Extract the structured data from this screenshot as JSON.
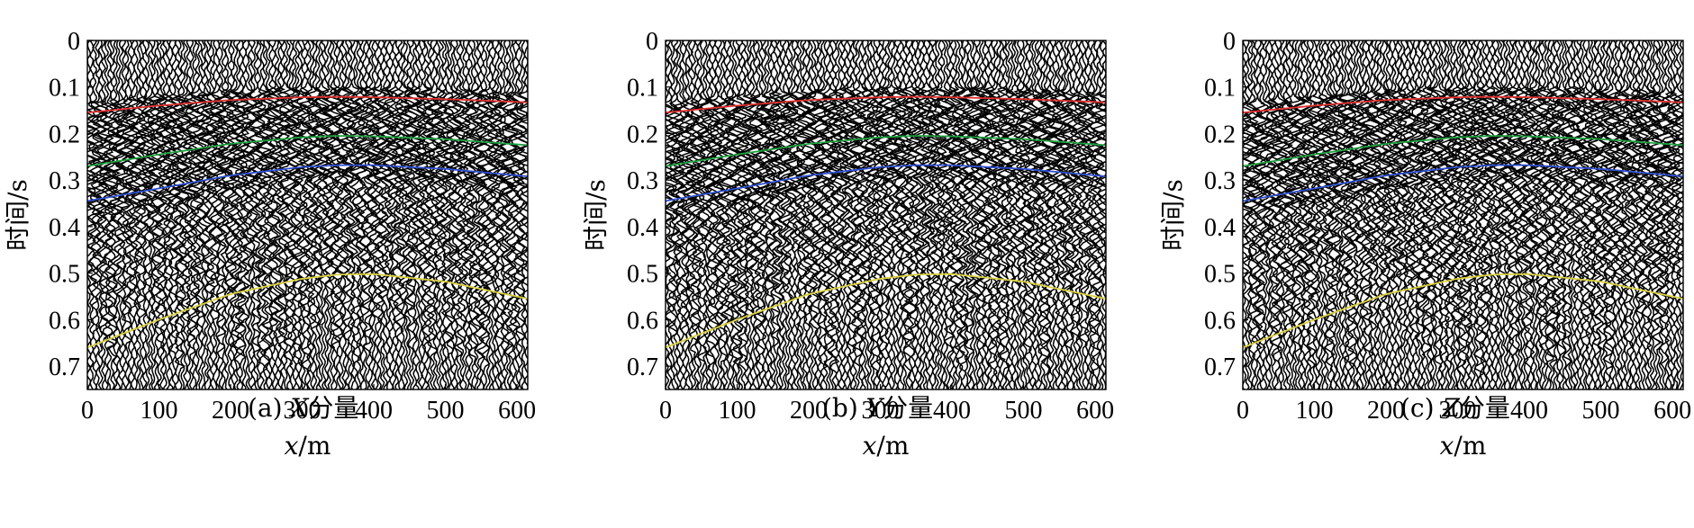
{
  "chart_data": [
    {
      "type": "seismic-wiggle",
      "panel": "a",
      "caption_prefix": "(a) ",
      "caption_component": "X",
      "caption_suffix": "分量",
      "ylabel": "时间/s",
      "xlabel_var": "x",
      "xlabel_unit": "/m",
      "x_ticks": [
        0,
        100,
        200,
        300,
        400,
        500,
        600
      ],
      "y_ticks": [
        "0",
        "0.1",
        "0.2",
        "0.3",
        "0.4",
        "0.5",
        "0.6",
        "0.7"
      ],
      "xlim": [
        0,
        615
      ],
      "ylim": [
        0,
        0.75
      ],
      "y_inverted": true,
      "seed": 11,
      "series": [
        {
          "color": "#e03030",
          "x": [
            0,
            100,
            200,
            300,
            350,
            400,
            500,
            615
          ],
          "t": [
            0.155,
            0.14,
            0.128,
            0.122,
            0.121,
            0.122,
            0.126,
            0.133
          ]
        },
        {
          "color": "#20a040",
          "x": [
            0,
            100,
            200,
            300,
            350,
            400,
            500,
            615
          ],
          "t": [
            0.27,
            0.245,
            0.222,
            0.208,
            0.205,
            0.206,
            0.212,
            0.225
          ]
        },
        {
          "color": "#3050d0",
          "x": [
            0,
            100,
            200,
            300,
            350,
            400,
            500,
            615
          ],
          "t": [
            0.345,
            0.318,
            0.29,
            0.272,
            0.268,
            0.268,
            0.276,
            0.292
          ]
        },
        {
          "color": "#d8d040",
          "x": [
            0,
            100,
            200,
            300,
            350,
            400,
            500,
            615
          ],
          "t": [
            0.66,
            0.6,
            0.545,
            0.512,
            0.503,
            0.502,
            0.518,
            0.555
          ]
        }
      ]
    },
    {
      "type": "seismic-wiggle",
      "panel": "b",
      "caption_prefix": "(b) ",
      "caption_component": "Y",
      "caption_suffix": "分量",
      "ylabel": "时间/s",
      "xlabel_var": "x",
      "xlabel_unit": "/m",
      "x_ticks": [
        0,
        100,
        200,
        300,
        400,
        500,
        600
      ],
      "y_ticks": [
        "0",
        "0.1",
        "0.2",
        "0.3",
        "0.4",
        "0.5",
        "0.6",
        "0.7"
      ],
      "xlim": [
        0,
        615
      ],
      "ylim": [
        0,
        0.75
      ],
      "y_inverted": true,
      "seed": 23,
      "series": [
        {
          "color": "#e03030",
          "x": [
            0,
            100,
            200,
            300,
            350,
            400,
            500,
            615
          ],
          "t": [
            0.155,
            0.14,
            0.128,
            0.122,
            0.121,
            0.122,
            0.126,
            0.133
          ]
        },
        {
          "color": "#20a040",
          "x": [
            0,
            100,
            200,
            300,
            350,
            400,
            500,
            615
          ],
          "t": [
            0.27,
            0.245,
            0.222,
            0.208,
            0.205,
            0.206,
            0.212,
            0.225
          ]
        },
        {
          "color": "#3050d0",
          "x": [
            0,
            100,
            200,
            300,
            350,
            400,
            500,
            615
          ],
          "t": [
            0.345,
            0.318,
            0.29,
            0.272,
            0.268,
            0.268,
            0.276,
            0.292
          ]
        },
        {
          "color": "#d8d040",
          "x": [
            0,
            100,
            200,
            300,
            350,
            400,
            500,
            615
          ],
          "t": [
            0.66,
            0.6,
            0.545,
            0.512,
            0.503,
            0.502,
            0.518,
            0.555
          ]
        }
      ]
    },
    {
      "type": "seismic-wiggle",
      "panel": "c",
      "caption_prefix": "(c) ",
      "caption_component": "Z",
      "caption_suffix": "分量",
      "ylabel": "时间/s",
      "xlabel_var": "x",
      "xlabel_unit": "/m",
      "x_ticks": [
        0,
        100,
        200,
        300,
        400,
        500,
        600
      ],
      "y_ticks": [
        "0",
        "0.1",
        "0.2",
        "0.3",
        "0.4",
        "0.5",
        "0.6",
        "0.7"
      ],
      "xlim": [
        0,
        615
      ],
      "ylim": [
        0,
        0.75
      ],
      "y_inverted": true,
      "seed": 37,
      "series": [
        {
          "color": "#e03030",
          "x": [
            0,
            100,
            200,
            300,
            350,
            400,
            500,
            615
          ],
          "t": [
            0.155,
            0.14,
            0.128,
            0.122,
            0.121,
            0.122,
            0.126,
            0.133
          ]
        },
        {
          "color": "#20a040",
          "x": [
            0,
            100,
            200,
            300,
            350,
            400,
            500,
            615
          ],
          "t": [
            0.27,
            0.245,
            0.222,
            0.208,
            0.205,
            0.206,
            0.212,
            0.225
          ]
        },
        {
          "color": "#3050d0",
          "x": [
            0,
            100,
            200,
            300,
            350,
            400,
            500,
            615
          ],
          "t": [
            0.345,
            0.318,
            0.29,
            0.272,
            0.268,
            0.268,
            0.276,
            0.292
          ]
        },
        {
          "color": "#d8d040",
          "x": [
            0,
            100,
            200,
            300,
            350,
            400,
            500,
            615
          ],
          "t": [
            0.66,
            0.6,
            0.545,
            0.512,
            0.503,
            0.502,
            0.518,
            0.555
          ]
        }
      ]
    }
  ]
}
